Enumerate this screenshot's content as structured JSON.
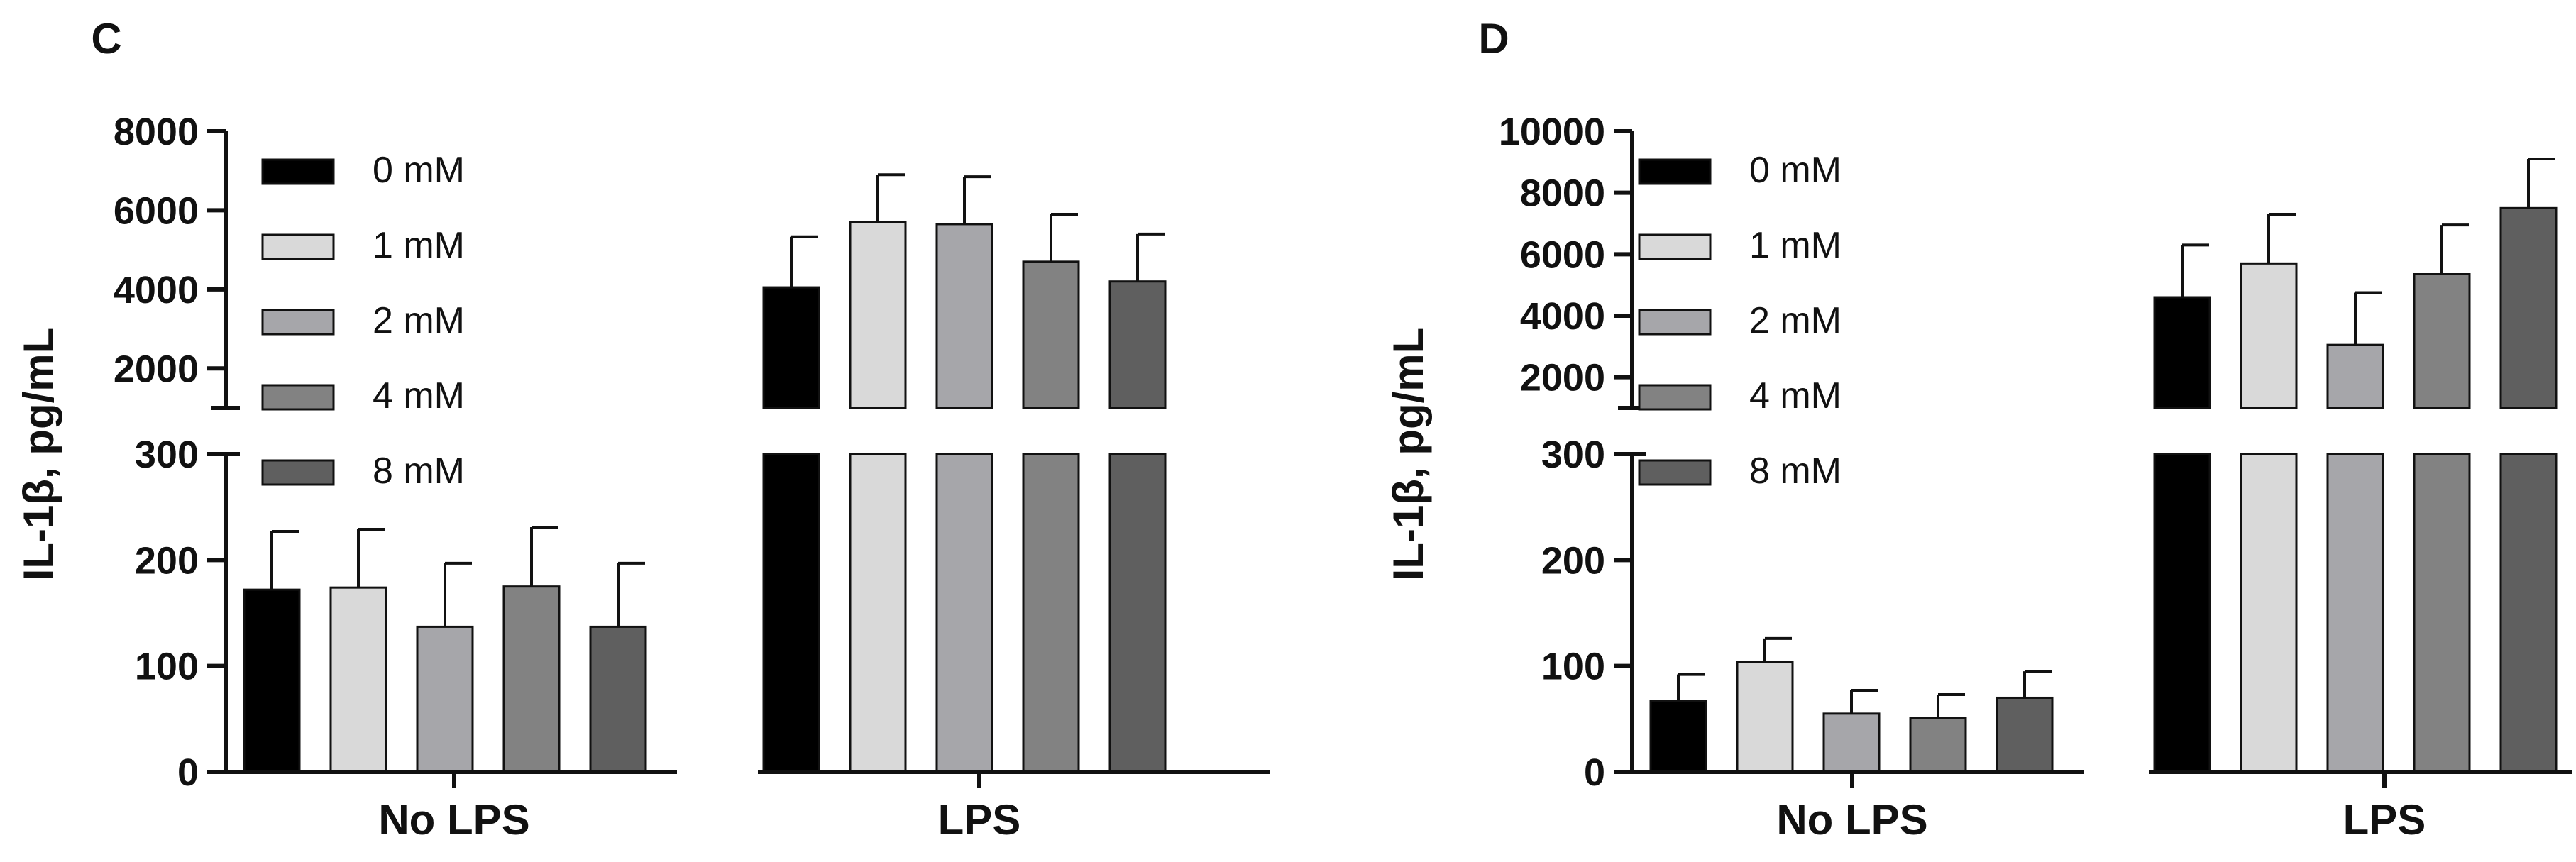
{
  "chart_data": [
    {
      "panel": "C",
      "type": "bar",
      "ylabel": "IL-1β, pg/mL",
      "xlabel": "",
      "categories": [
        "No LPS",
        "LPS"
      ],
      "series": [
        {
          "name": "0 mM",
          "color": "#000000",
          "values": [
            172,
            4050
          ],
          "errors": [
            55,
            1280
          ]
        },
        {
          "name": "1 mM",
          "color": "#d9d9d9",
          "values": [
            174,
            5700
          ],
          "errors": [
            55,
            1200
          ]
        },
        {
          "name": "2 mM",
          "color": "#a6a6aa",
          "values": [
            137,
            5650
          ],
          "errors": [
            60,
            1200
          ]
        },
        {
          "name": "4 mM",
          "color": "#828282",
          "values": [
            175,
            4700
          ],
          "errors": [
            56,
            1200
          ]
        },
        {
          "name": "8 mM",
          "color": "#5f5f5f",
          "values": [
            137,
            4200
          ],
          "errors": [
            60,
            1200
          ]
        }
      ],
      "y_axis": {
        "broken": true,
        "lower_range": [
          0,
          300
        ],
        "upper_range": [
          1000,
          8000
        ],
        "lower_ticks": [
          0,
          100,
          200,
          300
        ],
        "upper_ticks": [
          2000,
          4000,
          6000,
          8000
        ]
      },
      "legend": "top-left",
      "grid": false
    },
    {
      "panel": "D",
      "type": "bar",
      "ylabel": "IL-1β, pg/mL",
      "xlabel": "",
      "categories": [
        "No LPS",
        "LPS"
      ],
      "series": [
        {
          "name": "0 mM",
          "color": "#000000",
          "values": [
            67,
            4600
          ],
          "errors": [
            25,
            1700
          ]
        },
        {
          "name": "1 mM",
          "color": "#d9d9d9",
          "values": [
            104,
            5700
          ],
          "errors": [
            22,
            1600
          ]
        },
        {
          "name": "2 mM",
          "color": "#a6a6aa",
          "values": [
            55,
            3050
          ],
          "errors": [
            22,
            1700
          ]
        },
        {
          "name": "4 mM",
          "color": "#828282",
          "values": [
            51,
            5350
          ],
          "errors": [
            22,
            1600
          ]
        },
        {
          "name": "8 mM",
          "color": "#5f5f5f",
          "values": [
            70,
            7500
          ],
          "errors": [
            25,
            1600
          ]
        }
      ],
      "y_axis": {
        "broken": true,
        "lower_range": [
          0,
          300
        ],
        "upper_range": [
          1000,
          10000
        ],
        "lower_ticks": [
          0,
          100,
          200,
          300
        ],
        "upper_ticks": [
          2000,
          4000,
          6000,
          8000,
          10000
        ]
      },
      "legend": "top-left",
      "grid": false
    }
  ]
}
